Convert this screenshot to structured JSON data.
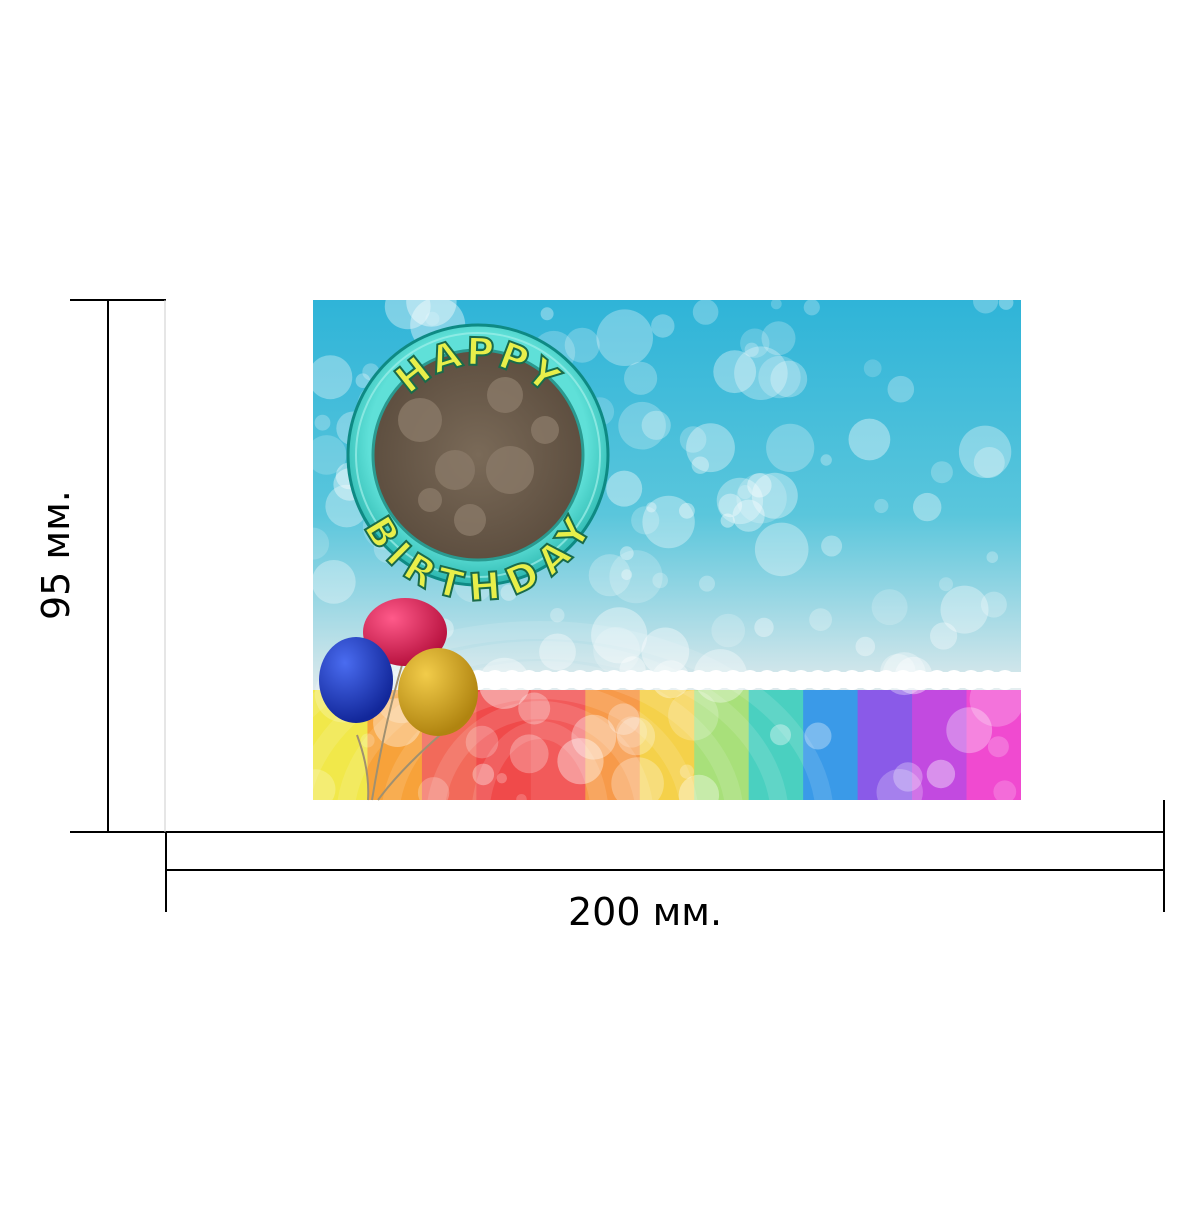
{
  "card": {
    "greeting_top": "HAPPY",
    "greeting_bottom": "BIRTHDAY"
  },
  "dimensions": {
    "width_label": "200 мм.",
    "height_label": "95 мм."
  },
  "colors": {
    "sky_top": "#2fb4d8",
    "sky_bottom": "#d6ecf0",
    "badge_ring": "#3fd0c8",
    "badge_center": "#6e5d4a",
    "letter_fill": "#e8ef4a",
    "letter_outline": "#1a6b4a",
    "balloon_blue": "#1a3db8",
    "balloon_red": "#e0245e",
    "balloon_yellow": "#d9a81a",
    "rainbow": [
      "#f1e84a",
      "#f7a23a",
      "#f26a5a",
      "#f04a4a",
      "#f25a5a",
      "#f79a4a",
      "#f5d14a",
      "#a8e07a",
      "#4ad0c0",
      "#3a9ae8",
      "#8a5ae8",
      "#c24ae0",
      "#f04ad0"
    ]
  },
  "icons": [
    "balloon-icon",
    "bubble-pattern"
  ]
}
